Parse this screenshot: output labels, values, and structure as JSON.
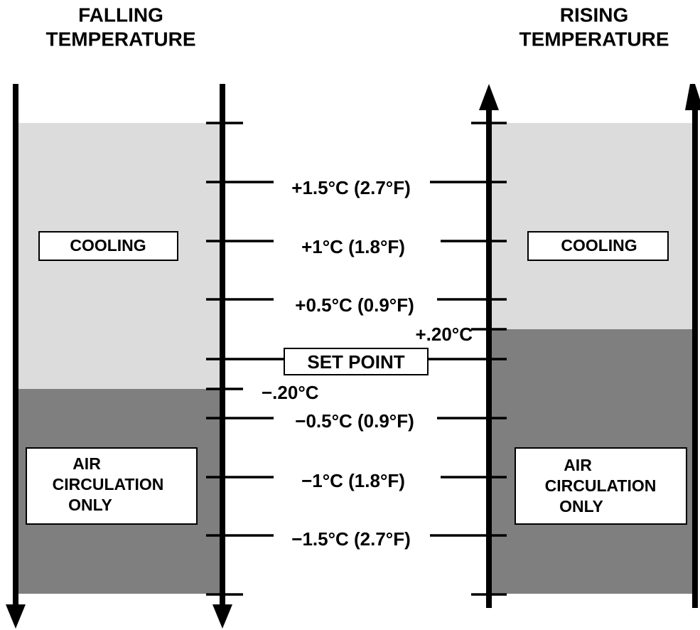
{
  "left_panel": {
    "title": [
      "FALLING",
      "TEMPERATURE"
    ],
    "upper_zone": "COOLING",
    "lower_zone": [
      "AIR",
      "CIRCULATION",
      "ONLY"
    ]
  },
  "right_panel": {
    "title": [
      "RISING",
      "TEMPERATURE"
    ],
    "upper_zone": "COOLING",
    "lower_zone": [
      "AIR",
      "CIRCULATION",
      "ONLY"
    ]
  },
  "scale": {
    "labels": [
      "+1.5°C (2.7°F)",
      "+1°C (1.8°F)",
      "+0.5°C (0.9°F)",
      "SET POINT",
      "−0.5°C (0.9°F)",
      "−1°C (1.8°F)",
      "−1.5°C (2.7°F)"
    ],
    "rising_switch": "+.20°C",
    "falling_switch": "−.20°C"
  }
}
